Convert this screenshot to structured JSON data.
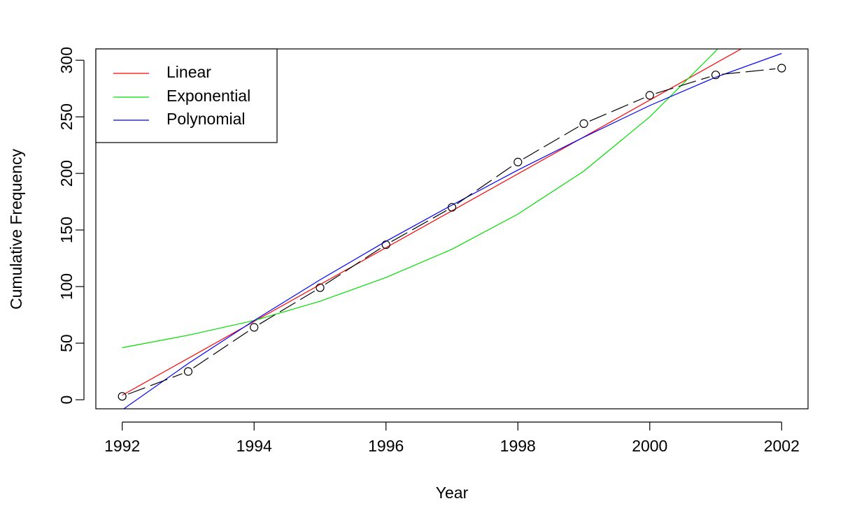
{
  "chart_data": {
    "type": "line",
    "title": "",
    "xlabel": "Year",
    "ylabel": "Cumulative Frequency",
    "xlim": [
      1991.6,
      2002.4
    ],
    "ylim": [
      -8,
      310
    ],
    "xticks": [
      1992,
      1994,
      1996,
      1998,
      2000,
      2002
    ],
    "xtick_labels": [
      "1992",
      "1994",
      "1996",
      "1998",
      "2000",
      "2002"
    ],
    "yticks": [
      0,
      50,
      100,
      150,
      200,
      250,
      300
    ],
    "ytick_labels": [
      "0",
      "50",
      "100",
      "150",
      "200",
      "250",
      "300"
    ],
    "grid": false,
    "legend_position": "top-left",
    "observed": {
      "x": [
        1992,
        1993,
        1994,
        1995,
        1996,
        1997,
        1998,
        1999,
        2000,
        2001,
        2002
      ],
      "y": [
        3,
        25,
        64,
        99,
        137,
        170,
        210,
        244,
        269,
        287,
        293
      ],
      "color": "#000000",
      "marker": "open-circle",
      "line": "dashed"
    },
    "series": [
      {
        "name": "Linear",
        "color": "#ff0000",
        "x": [
          1992,
          2002
        ],
        "y": [
          4,
          330
        ]
      },
      {
        "name": "Exponential",
        "color": "#00dd00",
        "x": [
          1992,
          1993,
          1994,
          1995,
          1996,
          1997,
          1998,
          1999,
          2000,
          2001,
          2002
        ],
        "y": [
          46,
          57,
          70,
          87,
          108,
          133,
          164,
          202,
          250,
          308,
          381
        ]
      },
      {
        "name": "Polynomial",
        "color": "#0000ff",
        "x": [
          1992,
          1993,
          1994,
          1995,
          1996,
          1997,
          1998,
          1999,
          2000,
          2001,
          2002
        ],
        "y": [
          -9,
          32,
          70,
          106,
          140,
          172,
          203,
          232,
          260,
          285,
          306
        ]
      }
    ]
  }
}
